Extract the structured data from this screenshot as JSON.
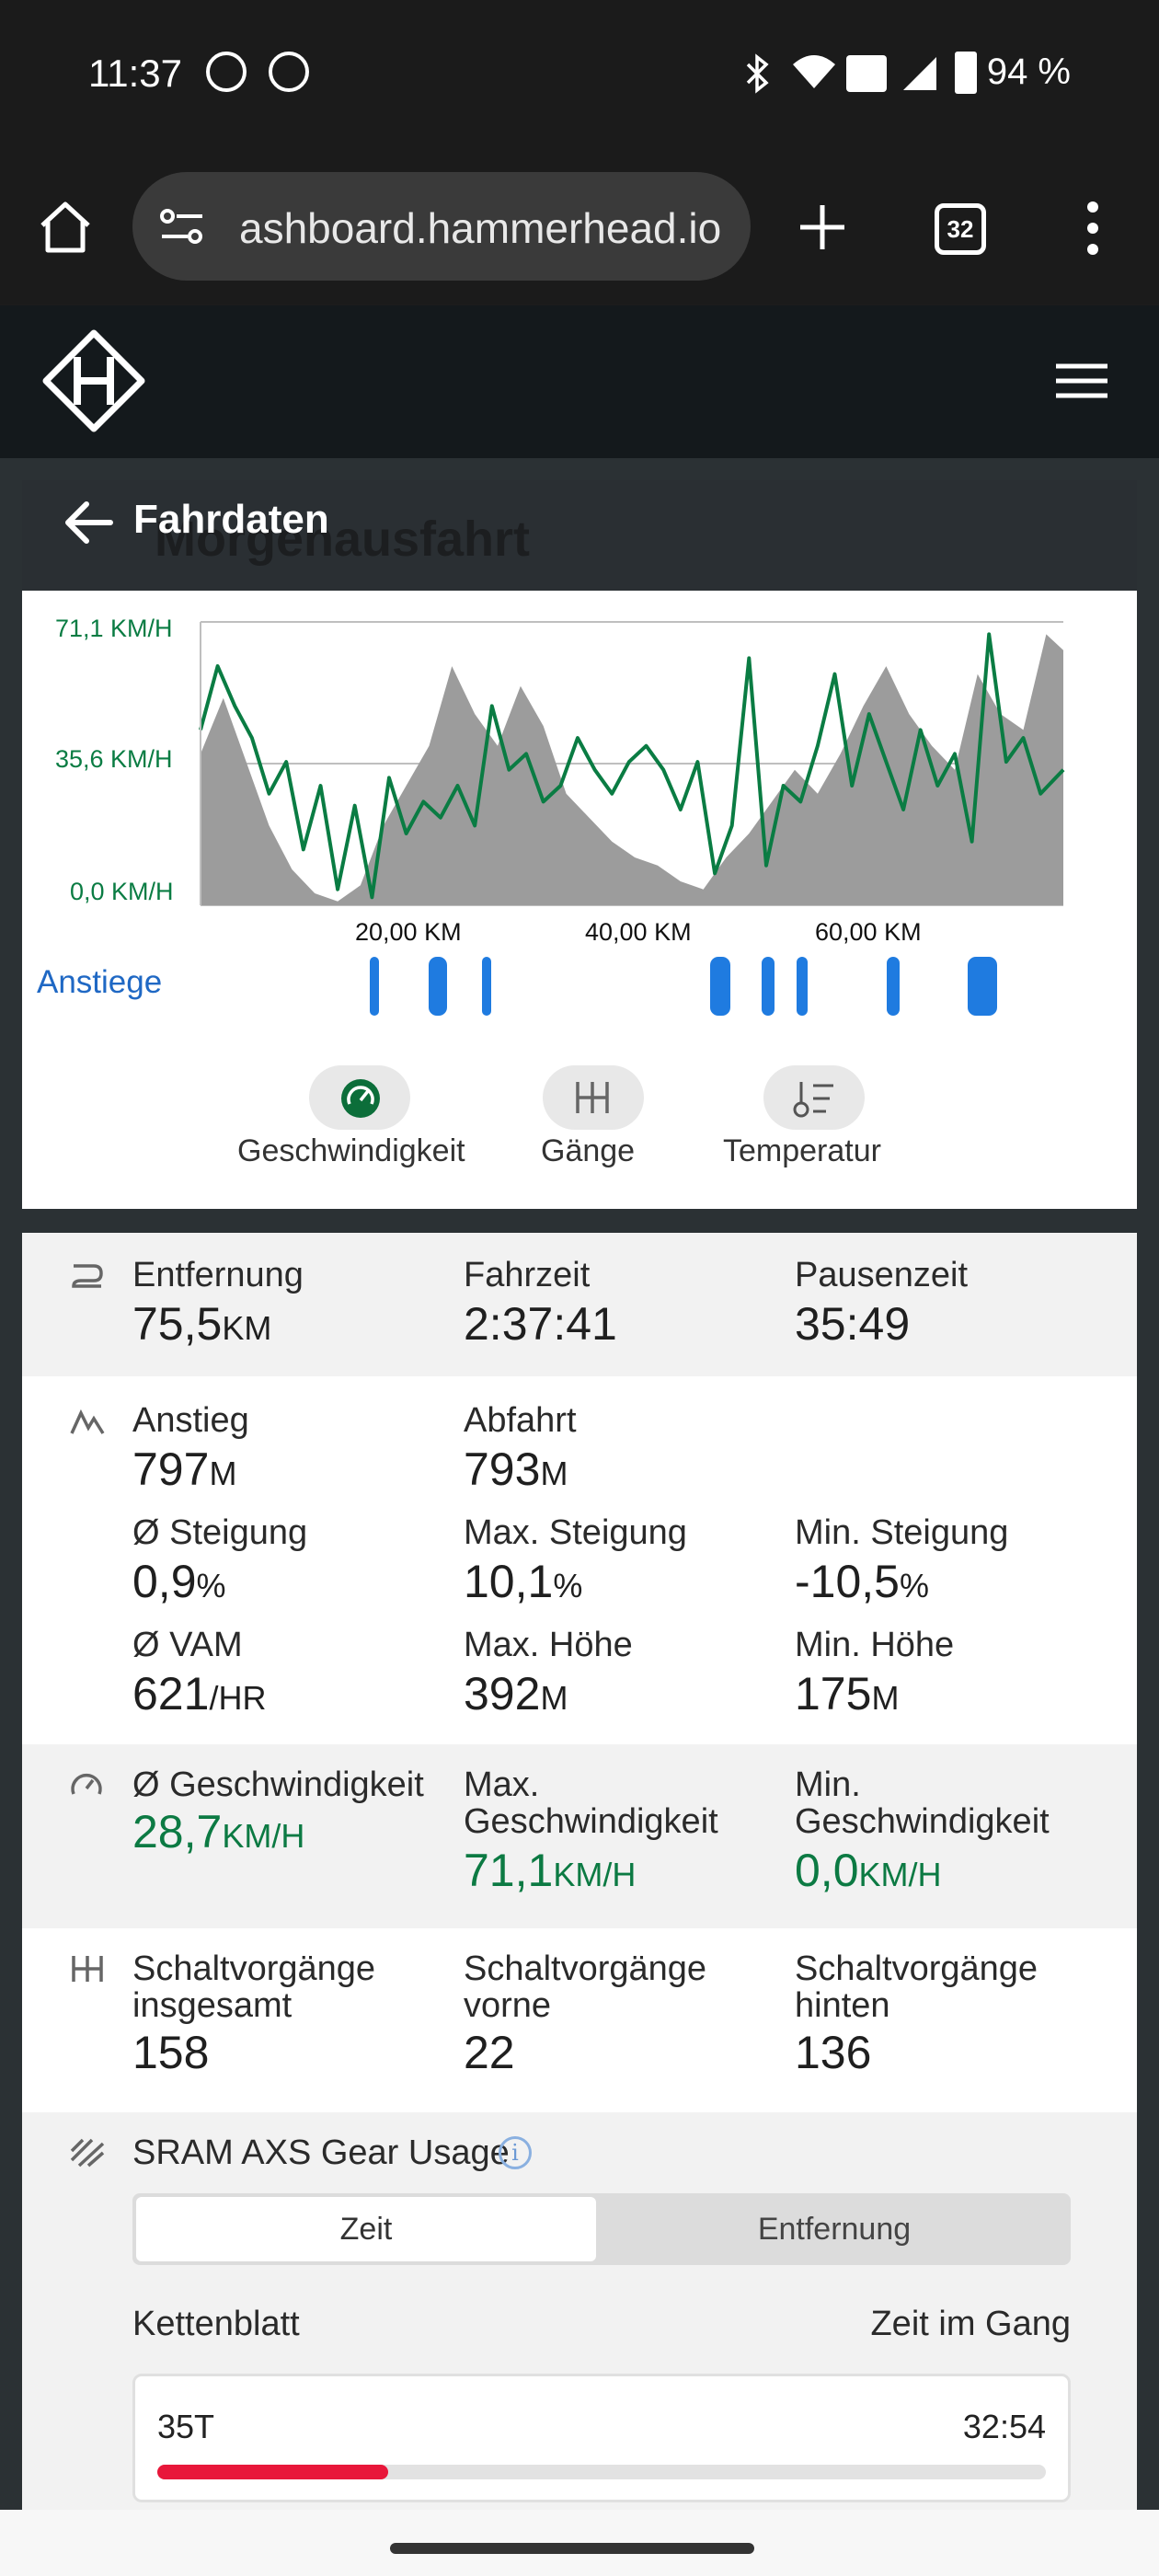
{
  "status_bar": {
    "time": "11:37",
    "battery": "94 %"
  },
  "browser": {
    "url": "ashboard.hammerhead.io",
    "tab_count": "32"
  },
  "modal": {
    "title": "Fahrdaten",
    "background_title": "Morgenausfahrt"
  },
  "chart_data": {
    "type": "area",
    "xlabel": "",
    "ylabel": "",
    "y_tick_labels": [
      "71,1 KM/H",
      "35,6 KM/H",
      "0,0 KM/H"
    ],
    "x_tick_labels": [
      "20,00 KM",
      "40,00 KM",
      "60,00 KM"
    ],
    "ylim": [
      0,
      71.1
    ],
    "xlim": [
      0,
      75.5
    ],
    "series": [
      {
        "type": "area",
        "color": "#9c9c9c",
        "x": [
          0,
          2,
          4,
          6,
          8,
          10,
          12,
          14,
          16,
          18,
          20,
          22,
          24,
          26,
          28,
          30,
          32,
          34,
          36,
          38,
          40,
          42,
          44,
          46,
          48,
          50,
          52,
          54,
          56,
          58,
          60,
          62,
          64,
          66,
          68,
          70,
          72,
          74,
          75.5
        ],
        "values": [
          38,
          52,
          36,
          20,
          9,
          3,
          1,
          5,
          20,
          30,
          40,
          60,
          48,
          40,
          55,
          45,
          28,
          22,
          16,
          12,
          10,
          6,
          4,
          12,
          18,
          26,
          34,
          28,
          38,
          50,
          60,
          48,
          40,
          34,
          58,
          48,
          44,
          68,
          64
        ]
      },
      {
        "type": "line",
        "color": "#0a7c43",
        "x": [
          0,
          1.5,
          3,
          4.5,
          6,
          7.5,
          9,
          10.5,
          12,
          13.5,
          15,
          16.5,
          18,
          19.5,
          21,
          22.5,
          24,
          25.5,
          27,
          28.5,
          30,
          31.5,
          33,
          34.5,
          36,
          37.5,
          39,
          40.5,
          42,
          43.5,
          45,
          46.5,
          48,
          49.5,
          51,
          52.5,
          54,
          55.5,
          57,
          58.5,
          60,
          61.5,
          63,
          64.5,
          66,
          67.5,
          69,
          70.5,
          72,
          73.5,
          75.5
        ],
        "values": [
          44,
          60,
          50,
          42,
          28,
          36,
          14,
          30,
          4,
          25,
          2,
          32,
          18,
          26,
          22,
          30,
          20,
          50,
          34,
          38,
          26,
          30,
          42,
          34,
          28,
          36,
          40,
          34,
          24,
          36,
          8,
          20,
          62,
          10,
          30,
          26,
          40,
          58,
          30,
          48,
          36,
          24,
          44,
          30,
          38,
          16,
          68,
          36,
          42,
          28,
          34
        ]
      }
    ]
  },
  "chart": {
    "climbs_label": "Anstiege",
    "toggles": [
      {
        "label": "Geschwindigkeit",
        "icon": "speedometer-icon",
        "active": true
      },
      {
        "label": "Gänge",
        "icon": "gear-shift-icon",
        "active": false
      },
      {
        "label": "Temperatur",
        "icon": "temperature-icon",
        "active": false
      }
    ]
  },
  "stats": {
    "distance": {
      "label": "Entfernung",
      "value": "75,5",
      "unit": "KM"
    },
    "ride_time": {
      "label": "Fahrzeit",
      "value": "2:37:41"
    },
    "pause_time": {
      "label": "Pausenzeit",
      "value": "35:49"
    },
    "ascent": {
      "label": "Anstieg",
      "value": "797",
      "unit": "M"
    },
    "descent": {
      "label": "Abfahrt",
      "value": "793",
      "unit": "M"
    },
    "avg_grade": {
      "label": "Ø Steigung",
      "value": "0,9",
      "unit": "%"
    },
    "max_grade": {
      "label": "Max. Steigung",
      "value": "10,1",
      "unit": "%"
    },
    "min_grade": {
      "label": "Min. Steigung",
      "value": "-10,5",
      "unit": "%"
    },
    "avg_vam": {
      "label": "Ø VAM",
      "value": "621",
      "unit": "/HR"
    },
    "max_alt": {
      "label": "Max. Höhe",
      "value": "392",
      "unit": "M"
    },
    "min_alt": {
      "label": "Min. Höhe",
      "value": "175",
      "unit": "M"
    },
    "avg_speed": {
      "label": "Ø Geschwindigkeit",
      "value": "28,7",
      "unit": "KM/H"
    },
    "max_speed": {
      "label1": "Max.",
      "label2": "Geschwindigkeit",
      "value": "71,1",
      "unit": "KM/H"
    },
    "min_speed": {
      "label1": "Min.",
      "label2": "Geschwindigkeit",
      "value": "0,0",
      "unit": "KM/H"
    },
    "shifts_total": {
      "label1": "Schaltvorgänge",
      "label2": "insgesamt",
      "value": "158"
    },
    "shifts_front": {
      "label1": "Schaltvorgänge",
      "label2": "vorne",
      "value": "22"
    },
    "shifts_rear": {
      "label1": "Schaltvorgänge",
      "label2": "hinten",
      "value": "136"
    }
  },
  "gear_usage": {
    "title": "SRAM AXS Gear Usage",
    "tab_time": "Zeit",
    "tab_distance": "Entfernung",
    "col_left": "Kettenblatt",
    "col_right": "Zeit im Gang",
    "chainring": {
      "label": "35T",
      "time": "32:54",
      "fill_fraction": 0.26,
      "color": "#e8173a"
    }
  }
}
